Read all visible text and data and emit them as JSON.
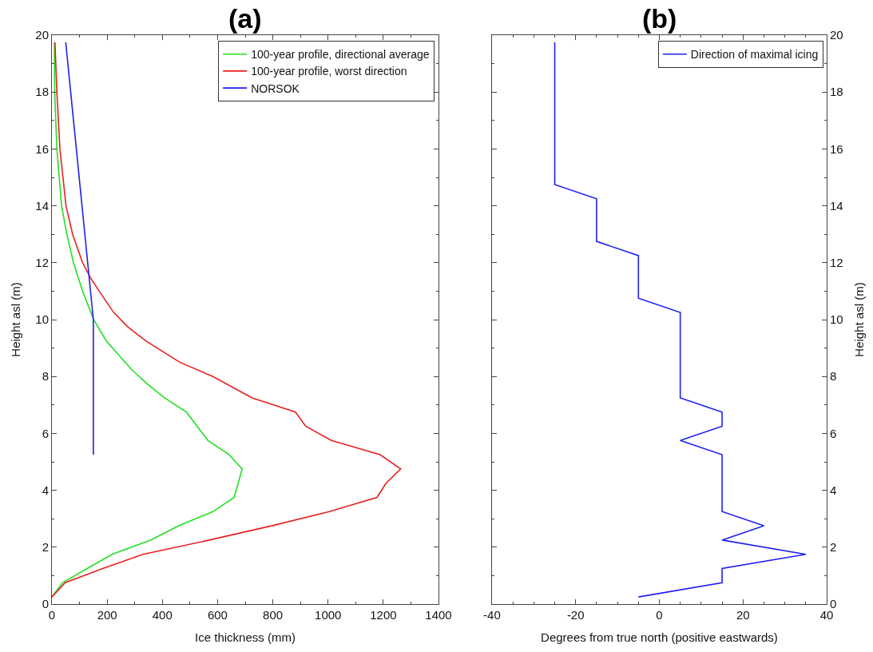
{
  "chart_data": [
    {
      "type": "line",
      "title": "(a)",
      "xlabel": "Ice thickness (mm)",
      "ylabel": "Height asl (m)",
      "xlim": [
        0,
        1400
      ],
      "xticks": [
        0,
        200,
        400,
        600,
        800,
        1000,
        1200,
        1400
      ],
      "ylim": [
        0,
        20
      ],
      "yticks": [
        0,
        2,
        4,
        6,
        8,
        10,
        12,
        14,
        16,
        18,
        20
      ],
      "legend": "top right",
      "line_style": "solid",
      "marker": "none",
      "series": [
        {
          "name": "100-year profile, directional average",
          "color": "#22e022",
          "x": [
            0,
            38,
            128,
            218,
            357,
            459,
            583,
            660,
            689,
            642,
            565,
            487,
            408,
            344,
            288,
            197,
            151,
            111,
            78,
            54,
            35,
            18,
            10,
            9
          ],
          "values": [
            0.25,
            0.75,
            1.25,
            1.75,
            2.25,
            2.75,
            3.25,
            3.75,
            4.75,
            5.25,
            5.75,
            6.75,
            7.25,
            7.75,
            8.25,
            9.25,
            10,
            11,
            12,
            13,
            14,
            16,
            18,
            19.75
          ]
        },
        {
          "name": "100-year profile, worst direction",
          "color": "#e82020",
          "x": [
            0,
            48,
            184,
            330,
            570,
            795,
            1005,
            1177,
            1210,
            1263,
            1188,
            1012,
            919,
            882,
            725,
            583,
            463,
            340,
            274,
            224,
            171,
            138,
            111,
            75,
            51,
            29,
            18,
            11
          ],
          "values": [
            0.25,
            0.75,
            1.25,
            1.75,
            2.25,
            2.75,
            3.25,
            3.75,
            4.25,
            4.75,
            5.25,
            5.75,
            6.25,
            6.75,
            7.25,
            8,
            8.5,
            9.25,
            9.75,
            10.25,
            11,
            11.5,
            12,
            13,
            14,
            16,
            18,
            19.75
          ]
        },
        {
          "name": "NORSOK",
          "color": "#2020e8",
          "x": [
            150,
            150,
            50
          ],
          "values": [
            5.25,
            10,
            19.75
          ]
        }
      ]
    },
    {
      "type": "line",
      "title": "(b)",
      "xlabel": "Degrees from true north (positive eastwards)",
      "y2label": "Height asl (m)",
      "xlim": [
        -40,
        40
      ],
      "xticks": [
        -40,
        -20,
        0,
        20,
        40
      ],
      "y2lim": [
        0,
        20
      ],
      "y2ticks": [
        0,
        2,
        4,
        6,
        8,
        10,
        12,
        14,
        16,
        18,
        20
      ],
      "legend": "top right",
      "line_style": "solid",
      "marker": "none",
      "series": [
        {
          "name": "Direction of maximal icing",
          "color": "#2020f0",
          "axis": "y2",
          "x": [
            -5,
            15,
            15,
            35,
            15,
            25,
            15,
            15,
            5,
            15,
            15,
            5,
            5,
            -5,
            -5,
            -15,
            -15,
            -25,
            -25
          ],
          "values": [
            0.25,
            0.75,
            1.25,
            1.75,
            2.25,
            2.75,
            3.25,
            5.25,
            5.75,
            6.25,
            6.75,
            7.25,
            10.25,
            10.75,
            12.25,
            12.75,
            14.25,
            14.75,
            19.75
          ]
        }
      ]
    }
  ]
}
